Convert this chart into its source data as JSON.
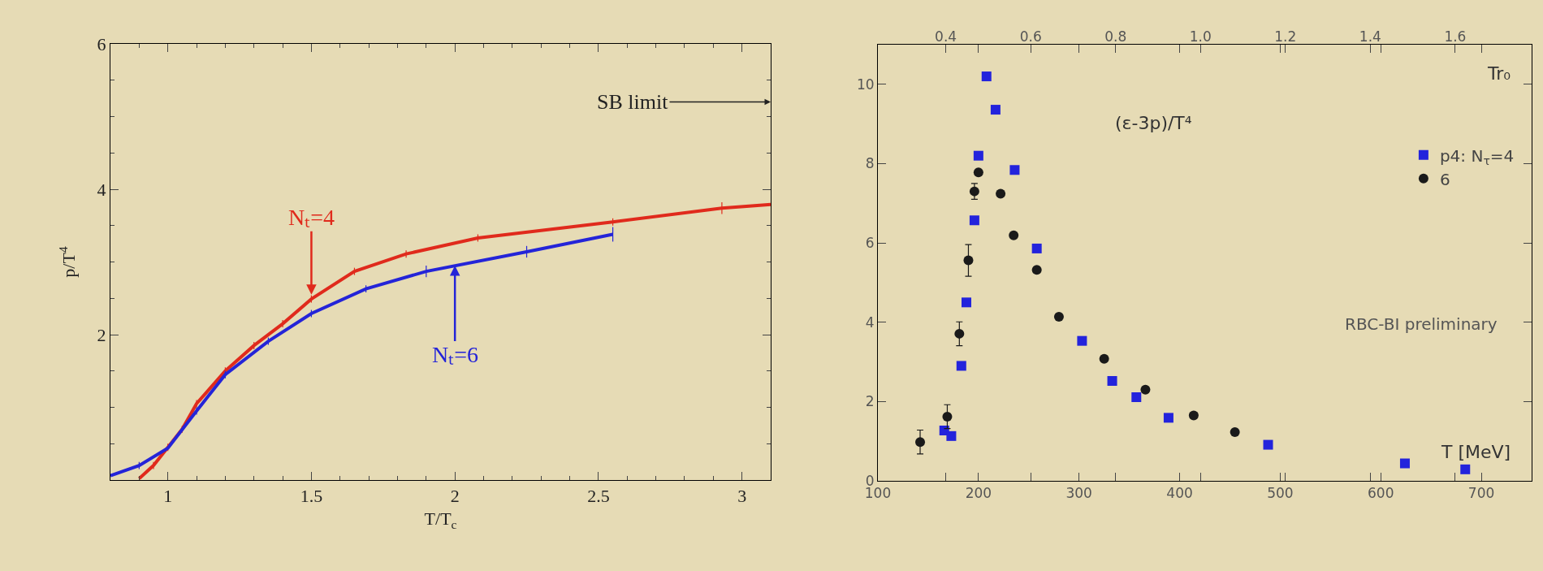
{
  "chart_data": [
    {
      "type": "line",
      "xlabel": "T/T$_{c}$",
      "ylabel": "p/T$^{4}$",
      "xlim": [
        0.8,
        3.1
      ],
      "xticks": [
        1,
        1.5,
        2,
        2.5,
        3
      ],
      "ylim": [
        0,
        6
      ],
      "yticks": [
        2,
        4,
        6
      ],
      "grid": false,
      "legend": false,
      "line_style": "solid",
      "series": [
        {
          "color": "#e02a1c",
          "x": [
            0.9,
            0.95,
            1.0,
            1.05,
            1.1,
            1.2,
            1.3,
            1.4,
            1.5,
            1.65,
            1.83,
            2.08,
            2.55,
            2.93,
            3.1
          ],
          "values": [
            0.02,
            0.2,
            0.45,
            0.7,
            1.05,
            1.5,
            1.85,
            2.15,
            2.49,
            2.87,
            3.11,
            3.33,
            3.55,
            3.74,
            3.79
          ],
          "errors": [
            null,
            0.05,
            0.05,
            0.05,
            0.05,
            0.05,
            0.05,
            0.05,
            0.05,
            0.05,
            0.05,
            0.05,
            0.05,
            0.08,
            null
          ]
        },
        {
          "color": "#2424d8",
          "x": [
            0.8,
            0.9,
            1.0,
            1.1,
            1.2,
            1.35,
            1.5,
            1.69,
            1.9,
            2.25,
            2.55
          ],
          "values": [
            0.06,
            0.2,
            0.44,
            0.95,
            1.45,
            1.91,
            2.29,
            2.63,
            2.87,
            3.14,
            3.38
          ],
          "errors": [
            null,
            0.05,
            null,
            0.05,
            0.05,
            0.05,
            0.05,
            0.05,
            0.08,
            0.08,
            0.1
          ]
        }
      ],
      "annotations": [
        "SB limit",
        {
          "text": "Nₜ=4",
          "x": 1.5,
          "y": 2.55
        },
        {
          "text": "Nₜ=6",
          "x": 2.0,
          "y": 2.95
        }
      ]
    },
    {
      "type": "scatter",
      "xlabel": "T [MeV]",
      "ylabel": "(ε-3p)/T⁴",
      "x2label": "Tr₀",
      "xlim": [
        100,
        750
      ],
      "xticks": [
        100,
        200,
        300,
        400,
        500,
        600,
        700
      ],
      "x2lim": [
        0.24,
        1.78
      ],
      "x2ticks": [
        0.4,
        0.6,
        0.8,
        {
          "value": 1.0,
          "label": "1.0"
        },
        1.2,
        1.4,
        1.6
      ],
      "ylim": [
        0,
        11
      ],
      "yticks": [
        0,
        2,
        4,
        6,
        8,
        10
      ],
      "grid": false,
      "legend": "right",
      "series": [
        {
          "name": "p4: N$_{τ}$=4",
          "color": "#2323dc",
          "marker": "square",
          "x": [
            166,
            173,
            183,
            188,
            196,
            200,
            208,
            217,
            236,
            258,
            303,
            333,
            357,
            389,
            488,
            624,
            684
          ],
          "values": [
            1.27,
            1.13,
            2.9,
            4.5,
            6.57,
            8.2,
            10.2,
            9.36,
            7.84,
            5.86,
            3.53,
            2.52,
            2.11,
            1.59,
            0.91,
            0.44,
            0.29
          ]
        },
        {
          "name": "6",
          "color": "#1a1a1a",
          "marker": "circle",
          "x": [
            142,
            169,
            181,
            190,
            196,
            200,
            222,
            235,
            258,
            280,
            325,
            366,
            414,
            455
          ],
          "values": [
            0.98,
            1.62,
            3.71,
            5.56,
            7.3,
            7.78,
            7.24,
            6.19,
            5.32,
            4.14,
            3.08,
            2.3,
            1.65,
            1.23
          ],
          "errors": [
            0.3,
            0.3,
            0.3,
            0.4,
            0.2,
            null,
            null,
            null,
            null,
            null,
            null,
            null,
            null,
            null
          ]
        }
      ],
      "annotations": [
        "RBC-BI preliminary"
      ]
    }
  ]
}
